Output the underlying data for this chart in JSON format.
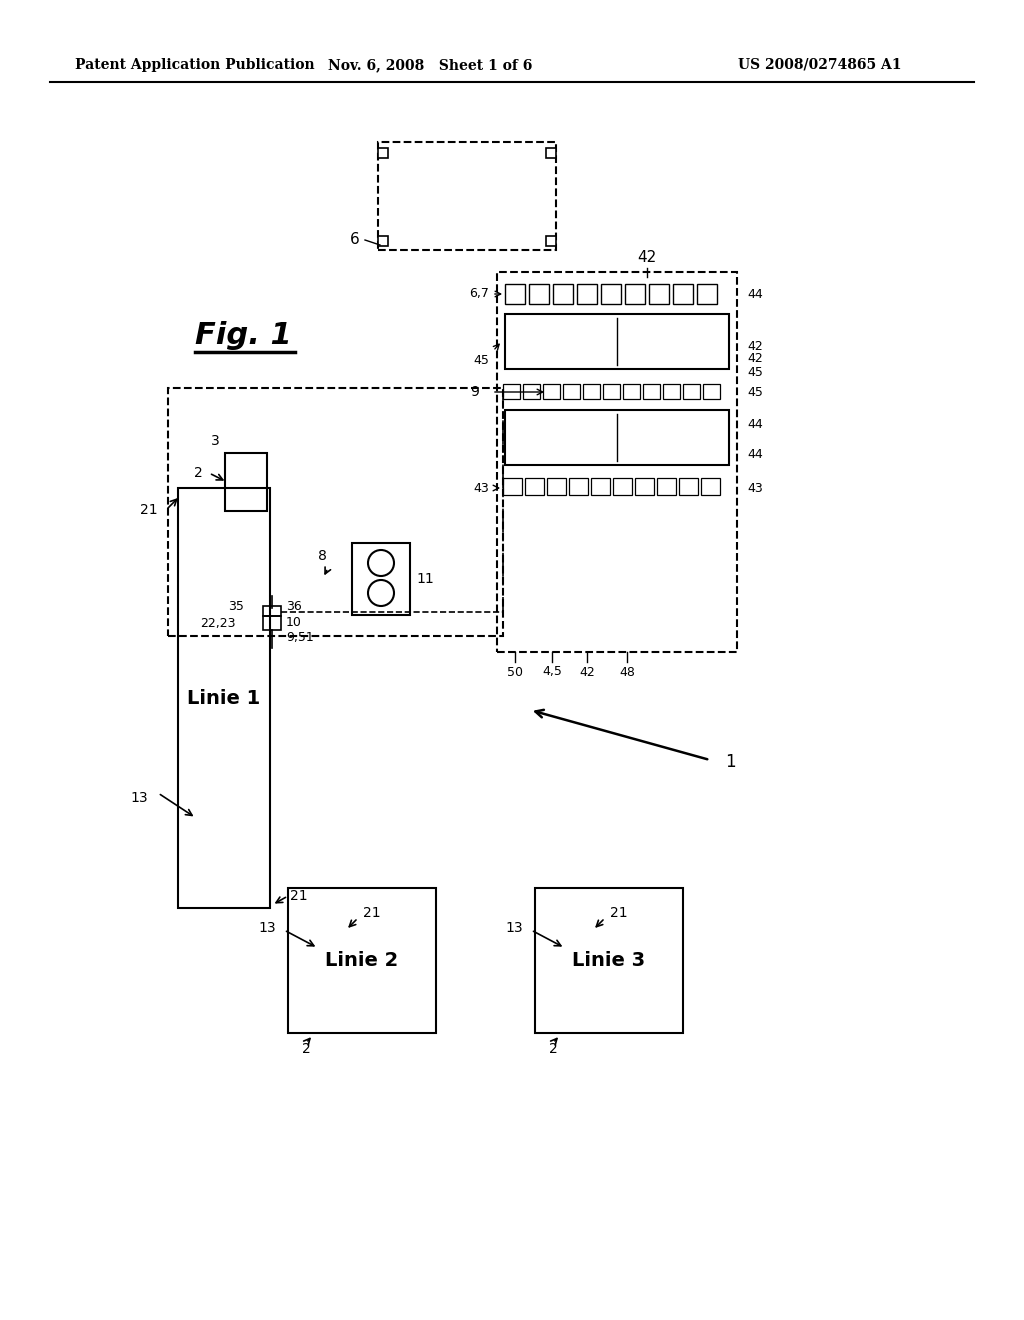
{
  "background": "#ffffff",
  "header_left": "Patent Application Publication",
  "header_mid": "Nov. 6, 2008   Sheet 1 of 6",
  "header_right": "US 2008/0274865 A1",
  "fig_label": "Fig. 1",
  "line_color": "#000000",
  "dash_color": "#555555"
}
